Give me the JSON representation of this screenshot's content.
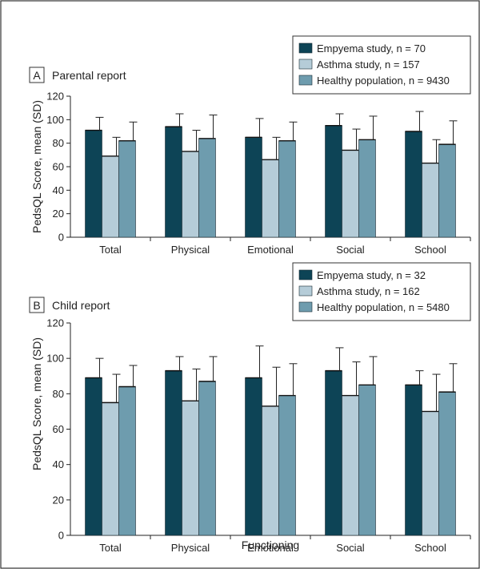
{
  "figure": {
    "frame_color": "#333333"
  },
  "chart_data": [
    {
      "type": "bar",
      "panel_letter": "A",
      "title": "Parental report",
      "ylabel": "PedsQL Score, mean (SD)",
      "xlabel": "",
      "ylim": [
        0,
        120
      ],
      "yticks": [
        0,
        20,
        40,
        60,
        80,
        100,
        120
      ],
      "categories": [
        "Total",
        "Physical",
        "Emotional",
        "Social",
        "School"
      ],
      "legend_position": "top-right",
      "series": [
        {
          "name": "Empyema study, n = 70",
          "color": "#0d4456",
          "values": [
            91,
            94,
            85,
            95,
            90
          ],
          "errors": [
            11,
            11,
            16,
            10,
            17
          ]
        },
        {
          "name": "Asthma study, n = 157",
          "color": "#b5ccd8",
          "values": [
            69,
            73,
            66,
            74,
            63
          ],
          "errors": [
            16,
            18,
            19,
            18,
            20
          ]
        },
        {
          "name": "Healthy population, n = 9430",
          "color": "#6e9cae",
          "values": [
            82,
            84,
            82,
            83,
            79
          ],
          "errors": [
            16,
            20,
            16,
            20,
            20
          ]
        }
      ]
    },
    {
      "type": "bar",
      "panel_letter": "B",
      "title": "Child report",
      "ylabel": "PedsQL Score, mean (SD)",
      "xlabel": "Functioning",
      "ylim": [
        0,
        120
      ],
      "yticks": [
        0,
        20,
        40,
        60,
        80,
        100,
        120
      ],
      "categories": [
        "Total",
        "Physical",
        "Emotional",
        "Social",
        "School"
      ],
      "legend_position": "top-right",
      "series": [
        {
          "name": "Empyema study, n = 32",
          "color": "#0d4456",
          "values": [
            89,
            93,
            89,
            93,
            85
          ],
          "errors": [
            11,
            8,
            18,
            13,
            8
          ]
        },
        {
          "name": "Asthma study, n = 162",
          "color": "#b5ccd8",
          "values": [
            75,
            76,
            73,
            79,
            70
          ],
          "errors": [
            16,
            18,
            22,
            19,
            21
          ]
        },
        {
          "name": "Healthy population, n = 5480",
          "color": "#6e9cae",
          "values": [
            84,
            87,
            79,
            85,
            81
          ],
          "errors": [
            12,
            14,
            18,
            16,
            16
          ]
        }
      ]
    }
  ]
}
